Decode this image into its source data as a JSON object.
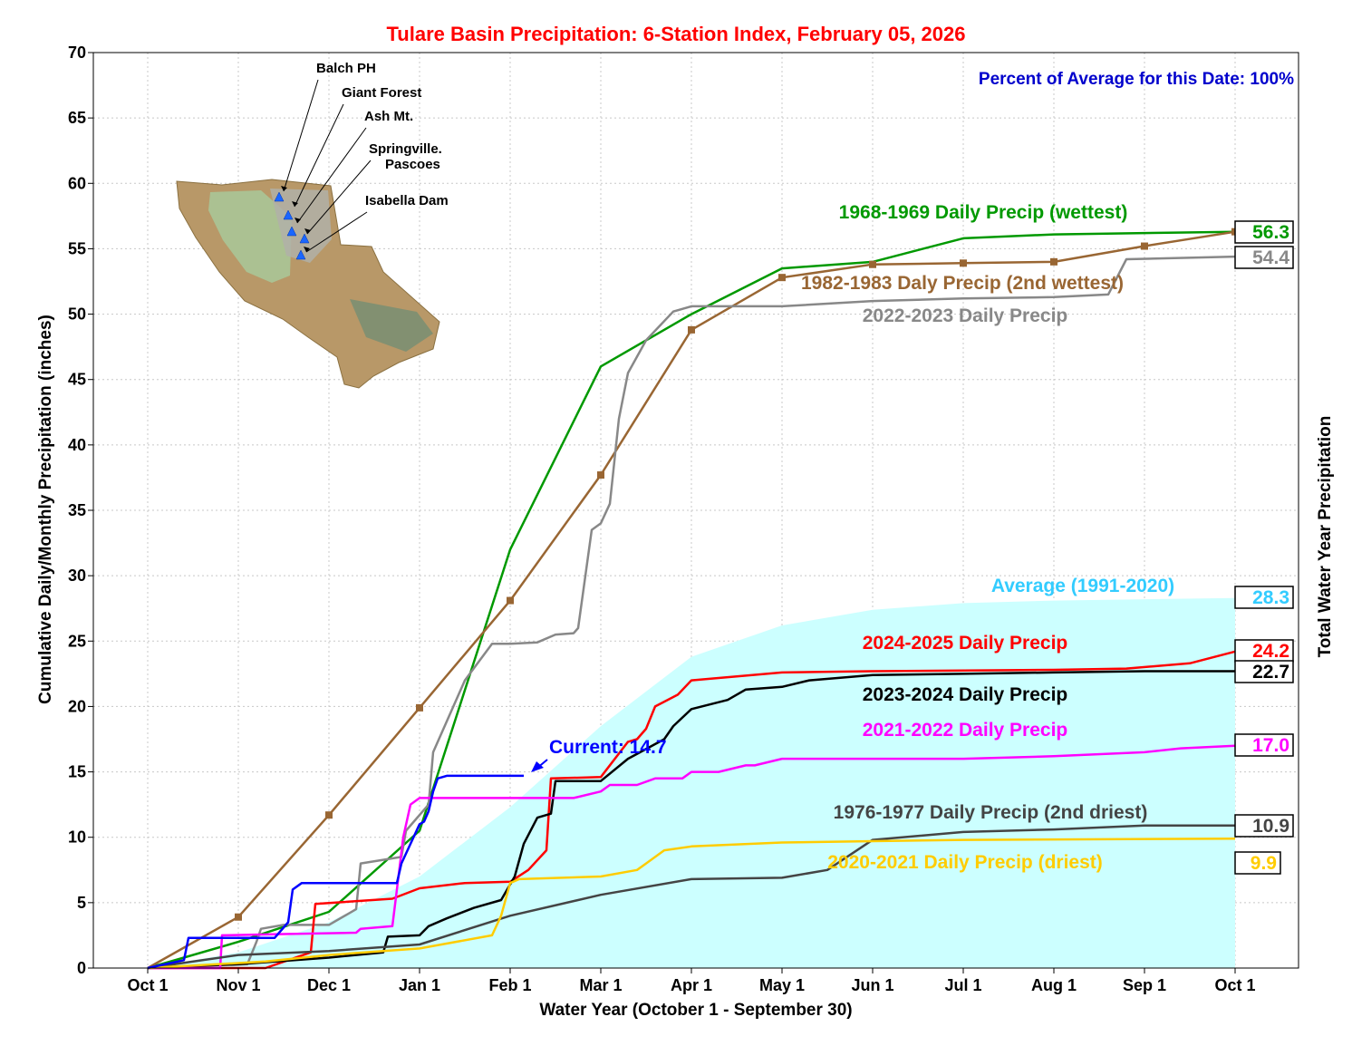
{
  "chart_data": {
    "type": "line",
    "title": "Tulare Basin Precipitation: 6-Station Index, February 05, 2026",
    "xlabel": "Water Year (October 1 - September 30)",
    "ylabel": "Cumulative Daily/Monthly Precipitation (inches)",
    "right_label": "Total Water Year Precipitation",
    "percent_text": "Percent of Average for this Date: 100%",
    "ylim": [
      0,
      70
    ],
    "yticks": [
      "0",
      "5",
      "10",
      "15",
      "20",
      "25",
      "30",
      "35",
      "40",
      "45",
      "50",
      "55",
      "60",
      "65",
      "70"
    ],
    "xticks": [
      "Oct 1",
      "Nov 1",
      "Dec 1",
      "Jan 1",
      "Feb 1",
      "Mar 1",
      "Apr 1",
      "May 1",
      "Jun 1",
      "Jul 1",
      "Aug 1",
      "Sep 1",
      "Oct 1"
    ],
    "grid": true,
    "stations": [
      "Balch PH",
      "Giant Forest",
      "Ash Mt.",
      "Springville.\nPascoes",
      "Isabella Dam"
    ],
    "current": {
      "label": "Current: 14.7",
      "value": 14.7,
      "color": "#0000ff"
    },
    "average": {
      "name": "Average (1991-2020)",
      "total": "28.3",
      "color": "#33ccff",
      "fill": "#ccffff",
      "x": [
        0,
        1,
        2,
        3,
        4,
        5,
        6,
        7,
        8,
        9,
        10,
        11,
        12
      ],
      "y": [
        0,
        1.2,
        3.5,
        7.0,
        12.3,
        18.5,
        23.8,
        26.2,
        27.4,
        27.9,
        28.1,
        28.2,
        28.3
      ]
    },
    "series": [
      {
        "name": "1968-1969 Daily Precip (wettest)",
        "total": "56.3",
        "color": "#009900",
        "x": [
          0,
          1,
          2,
          3,
          4,
          5,
          6,
          7,
          8,
          9,
          10,
          11,
          12
        ],
        "y": [
          0,
          2.0,
          4.3,
          10.5,
          32.0,
          46.0,
          50.0,
          53.5,
          54.0,
          55.8,
          56.1,
          56.2,
          56.3
        ]
      },
      {
        "name": "1982-1983 Daly Precip (2nd wettest)",
        "total": "",
        "color": "#996633",
        "markers": true,
        "x": [
          0,
          1,
          2,
          3,
          4,
          5,
          6,
          7,
          8,
          9,
          10,
          11,
          12
        ],
        "y": [
          0,
          3.9,
          11.7,
          19.9,
          28.1,
          37.7,
          48.8,
          52.8,
          53.8,
          53.9,
          54.0,
          55.2,
          56.3
        ]
      },
      {
        "name": "2022-2023 Daily Precip",
        "total": "54.4",
        "color": "#888888",
        "x": [
          0,
          1.1,
          1.2,
          1.25,
          1.5,
          2.0,
          2.3,
          2.35,
          2.8,
          2.85,
          3.1,
          3.15,
          3.5,
          3.8,
          4.0,
          4.3,
          4.5,
          4.7,
          4.75,
          4.85,
          4.9,
          5.0,
          5.1,
          5.2,
          5.3,
          5.5,
          5.8,
          6.0,
          6.4,
          7.0,
          8.0,
          9.0,
          10.0,
          10.6,
          10.8,
          12.0
        ],
        "y": [
          0,
          0.3,
          2.0,
          3.0,
          3.3,
          3.3,
          4.5,
          8.0,
          8.5,
          10.5,
          12.5,
          16.5,
          22.0,
          24.8,
          24.8,
          24.9,
          25.5,
          25.6,
          26.0,
          31.0,
          33.5,
          34.0,
          35.5,
          42.0,
          45.5,
          48.0,
          50.2,
          50.6,
          50.6,
          50.6,
          51.0,
          51.2,
          51.3,
          51.5,
          54.2,
          54.4
        ]
      },
      {
        "name": "2024-2025 Daily Precip",
        "total": "24.2",
        "color": "#ff0000",
        "x": [
          0,
          1.3,
          1.55,
          1.8,
          1.85,
          2.7,
          3.0,
          3.5,
          4.0,
          4.2,
          4.4,
          4.45,
          5.0,
          5.3,
          5.4,
          5.5,
          5.6,
          5.85,
          6.0,
          7.0,
          8.0,
          10.0,
          10.8,
          11.5,
          12.0
        ],
        "y": [
          0,
          0,
          0.6,
          1.2,
          4.9,
          5.3,
          6.1,
          6.5,
          6.6,
          7.5,
          9.0,
          14.5,
          14.6,
          17.3,
          17.5,
          18.3,
          20.0,
          20.9,
          22.0,
          22.6,
          22.7,
          22.8,
          22.9,
          23.3,
          24.2
        ]
      },
      {
        "name": "2023-2024 Daily Precip",
        "total": "22.7",
        "color": "#000000",
        "x": [
          0,
          1.0,
          2.0,
          2.6,
          2.65,
          3.0,
          3.1,
          3.3,
          3.6,
          3.9,
          4.05,
          4.15,
          4.3,
          4.45,
          4.5,
          5.0,
          5.3,
          5.7,
          5.8,
          6.0,
          6.4,
          6.6,
          7.0,
          7.3,
          8.0,
          9.0,
          10.0,
          11.0,
          12.0
        ],
        "y": [
          0,
          0.3,
          0.8,
          1.2,
          2.4,
          2.5,
          3.2,
          3.8,
          4.6,
          5.2,
          7.0,
          9.5,
          11.5,
          11.8,
          14.3,
          14.3,
          16.0,
          17.5,
          18.5,
          19.8,
          20.5,
          21.3,
          21.5,
          22.0,
          22.4,
          22.5,
          22.6,
          22.7,
          22.7
        ]
      },
      {
        "name": "2021-2022 Daily Precip",
        "total": "17.0",
        "color": "#ff00ff",
        "x": [
          0,
          0.8,
          0.82,
          1.5,
          2.3,
          2.35,
          2.7,
          2.75,
          2.82,
          2.9,
          3.0,
          4.5,
          4.7,
          5.0,
          5.1,
          5.4,
          5.6,
          5.9,
          6.0,
          6.3,
          6.6,
          6.7,
          7.0,
          8.0,
          9.0,
          10.0,
          11.0,
          11.4,
          12.0
        ],
        "y": [
          0,
          0,
          2.5,
          2.6,
          2.7,
          3.0,
          3.2,
          6.0,
          10.0,
          12.5,
          13.0,
          13.0,
          13.0,
          13.5,
          14.0,
          14.0,
          14.5,
          14.5,
          15.0,
          15.0,
          15.5,
          15.5,
          16.0,
          16.0,
          16.0,
          16.2,
          16.5,
          16.8,
          17.0
        ]
      },
      {
        "name": "1976-1977 Daily Precip (2nd driest)",
        "total": "10.9",
        "color": "#444444",
        "x": [
          0,
          1,
          2,
          3,
          4,
          5,
          6,
          7,
          7.5,
          8,
          9,
          10,
          11,
          12
        ],
        "y": [
          0,
          1.0,
          1.3,
          1.8,
          4.0,
          5.6,
          6.8,
          6.9,
          7.5,
          9.8,
          10.4,
          10.6,
          10.9,
          10.9
        ]
      },
      {
        "name": "2020-2021 Daily Precip (driest)",
        "total": "9.9",
        "color": "#ffcc00",
        "x": [
          0,
          1.3,
          2.0,
          3.0,
          3.8,
          3.9,
          4.0,
          4.1,
          5.0,
          5.4,
          5.5,
          5.6,
          5.7,
          6.0,
          7.0,
          8.0,
          9.0,
          12.0
        ],
        "y": [
          0,
          0.5,
          1.0,
          1.5,
          2.5,
          4.0,
          6.5,
          6.8,
          7.0,
          7.5,
          8.0,
          8.5,
          9.0,
          9.3,
          9.6,
          9.7,
          9.8,
          9.9
        ]
      },
      {
        "name": "Current",
        "total": "",
        "color": "#0000ff",
        "nolabel": true,
        "x": [
          0,
          0.4,
          0.45,
          1.4,
          1.55,
          1.6,
          1.7,
          2.0,
          2.5,
          2.75,
          2.8,
          3.0,
          3.05,
          3.1,
          3.15,
          3.2,
          3.3,
          4.0,
          4.15
        ],
        "y": [
          0,
          0.6,
          2.3,
          2.3,
          3.5,
          6.0,
          6.5,
          6.5,
          6.5,
          6.5,
          8.0,
          11.0,
          11.2,
          12.0,
          13.5,
          14.5,
          14.7,
          14.7,
          14.7
        ]
      }
    ]
  }
}
